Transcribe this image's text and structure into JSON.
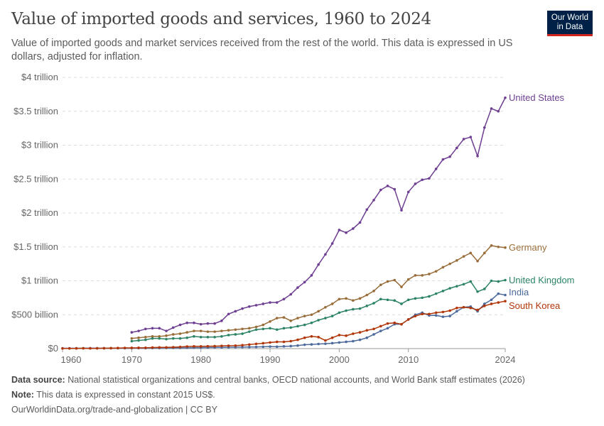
{
  "title": "Value of imported goods and services, 1960 to 2024",
  "subtitle": "Value of imported goods and market services received from the rest of the world. This data is expressed in US dollars, adjusted for inflation.",
  "logo": {
    "line1": "Our World",
    "line2": "in Data"
  },
  "footer": {
    "source_label": "Data source:",
    "source": "National statistical organizations and central banks, OECD national accounts, and World Bank staff estimates (2026)",
    "note_label": "Note:",
    "note": "This data is expressed in constant 2015 US$.",
    "url": "OurWorldinData.org/trade-and-globalization | CC BY"
  },
  "chart_data": {
    "type": "line",
    "title": "Value of imported goods and services, 1960 to 2024",
    "xlim": [
      1960,
      2024
    ],
    "ylim": [
      0,
      4000000000000
    ],
    "grid": "horizontal dashed",
    "legend": "right, inline labels",
    "x_ticks": [
      1960,
      1970,
      1980,
      1990,
      2000,
      2010,
      2024
    ],
    "y_ticks": [
      {
        "v": 0,
        "label": "$0"
      },
      {
        "v": 0.5,
        "label": "$500 billion"
      },
      {
        "v": 1,
        "label": "$1 trillion"
      },
      {
        "v": 1.5,
        "label": "$1.5 trillion"
      },
      {
        "v": 2,
        "label": "$2 trillion"
      },
      {
        "v": 2.5,
        "label": "$2.5 trillion"
      },
      {
        "v": 3,
        "label": "$3 trillion"
      },
      {
        "v": 3.5,
        "label": "$3.5 trillion"
      },
      {
        "v": 4,
        "label": "$4 trillion"
      }
    ],
    "unit": "trillion US$ (constant 2015)",
    "series": [
      {
        "name": "United States",
        "color": "#6D3E91",
        "start": 1970,
        "values": [
          0.24,
          0.26,
          0.29,
          0.3,
          0.3,
          0.26,
          0.31,
          0.35,
          0.38,
          0.38,
          0.36,
          0.37,
          0.37,
          0.41,
          0.51,
          0.55,
          0.59,
          0.62,
          0.64,
          0.66,
          0.68,
          0.68,
          0.73,
          0.8,
          0.9,
          0.98,
          1.08,
          1.24,
          1.39,
          1.55,
          1.75,
          1.71,
          1.77,
          1.86,
          2.05,
          2.19,
          2.34,
          2.4,
          2.35,
          2.04,
          2.31,
          2.43,
          2.49,
          2.51,
          2.65,
          2.79,
          2.83,
          2.96,
          3.09,
          3.12,
          2.84,
          3.26,
          3.54,
          3.5,
          3.7
        ]
      },
      {
        "name": "Germany",
        "color": "#996D39",
        "start": 1970,
        "values": [
          0.15,
          0.16,
          0.17,
          0.18,
          0.18,
          0.19,
          0.21,
          0.22,
          0.24,
          0.26,
          0.26,
          0.25,
          0.25,
          0.26,
          0.27,
          0.28,
          0.29,
          0.3,
          0.32,
          0.35,
          0.4,
          0.45,
          0.46,
          0.41,
          0.45,
          0.48,
          0.5,
          0.55,
          0.61,
          0.66,
          0.73,
          0.74,
          0.71,
          0.74,
          0.79,
          0.85,
          0.94,
          0.99,
          1.01,
          0.91,
          1.02,
          1.08,
          1.08,
          1.1,
          1.14,
          1.2,
          1.25,
          1.3,
          1.36,
          1.41,
          1.29,
          1.41,
          1.52,
          1.5,
          1.49
        ]
      },
      {
        "name": "United Kingdom",
        "color": "#2C8465",
        "start": 1970,
        "values": [
          0.11,
          0.12,
          0.13,
          0.15,
          0.15,
          0.14,
          0.15,
          0.15,
          0.16,
          0.18,
          0.17,
          0.17,
          0.17,
          0.18,
          0.2,
          0.21,
          0.22,
          0.25,
          0.28,
          0.29,
          0.3,
          0.28,
          0.3,
          0.31,
          0.33,
          0.35,
          0.38,
          0.42,
          0.45,
          0.48,
          0.53,
          0.56,
          0.58,
          0.59,
          0.63,
          0.67,
          0.73,
          0.72,
          0.71,
          0.66,
          0.72,
          0.74,
          0.75,
          0.77,
          0.81,
          0.85,
          0.89,
          0.92,
          0.95,
          0.99,
          0.84,
          0.88,
          1.0,
          0.99,
          1.01
        ]
      },
      {
        "name": "India",
        "color": "#4C6A9C",
        "start": 1960,
        "values": [
          0.005,
          0.005,
          0.005,
          0.006,
          0.006,
          0.006,
          0.006,
          0.007,
          0.007,
          0.007,
          0.008,
          0.008,
          0.008,
          0.009,
          0.009,
          0.01,
          0.01,
          0.011,
          0.012,
          0.013,
          0.015,
          0.016,
          0.017,
          0.018,
          0.019,
          0.021,
          0.022,
          0.023,
          0.025,
          0.027,
          0.03,
          0.028,
          0.033,
          0.037,
          0.045,
          0.057,
          0.062,
          0.068,
          0.072,
          0.08,
          0.09,
          0.1,
          0.11,
          0.13,
          0.16,
          0.21,
          0.26,
          0.3,
          0.36,
          0.36,
          0.43,
          0.5,
          0.53,
          0.49,
          0.49,
          0.47,
          0.48,
          0.55,
          0.61,
          0.62,
          0.55,
          0.66,
          0.72,
          0.81,
          0.79
        ]
      },
      {
        "name": "South Korea",
        "color": "#B13507",
        "start": 1960,
        "values": [
          0.002,
          0.002,
          0.003,
          0.004,
          0.003,
          0.004,
          0.005,
          0.006,
          0.008,
          0.01,
          0.011,
          0.012,
          0.012,
          0.016,
          0.018,
          0.018,
          0.021,
          0.025,
          0.031,
          0.034,
          0.033,
          0.035,
          0.036,
          0.04,
          0.043,
          0.044,
          0.05,
          0.06,
          0.07,
          0.079,
          0.09,
          0.1,
          0.1,
          0.11,
          0.13,
          0.16,
          0.18,
          0.17,
          0.12,
          0.16,
          0.2,
          0.19,
          0.22,
          0.24,
          0.27,
          0.29,
          0.33,
          0.37,
          0.38,
          0.36,
          0.43,
          0.48,
          0.51,
          0.51,
          0.53,
          0.54,
          0.56,
          0.6,
          0.61,
          0.6,
          0.57,
          0.63,
          0.66,
          0.68,
          0.7
        ]
      }
    ]
  }
}
